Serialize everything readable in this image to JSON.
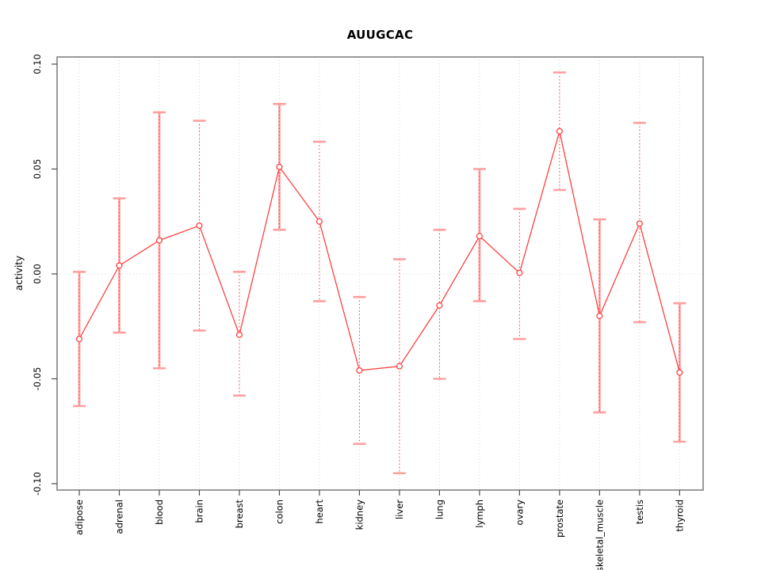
{
  "window": {
    "background": "#ffffff"
  },
  "chart_data": {
    "type": "line",
    "title": "AUUGCAC",
    "xlabel": "",
    "ylabel": "activity",
    "ylim": [
      -0.103,
      0.103
    ],
    "grid": {
      "vertical_dotted_per_category": true,
      "horizontal_zero_dotted": true
    },
    "legend_position": "none",
    "y_ticks": [
      {
        "value": 0.1,
        "label": "0.10"
      },
      {
        "value": 0.05,
        "label": "0.05"
      },
      {
        "value": 0.0,
        "label": "0.00"
      },
      {
        "value": -0.05,
        "label": "-0.05"
      },
      {
        "value": -0.1,
        "label": "-0.10"
      }
    ],
    "categories": [
      "adipose",
      "adrenal",
      "blood",
      "brain",
      "breast",
      "colon",
      "heart",
      "kidney",
      "liver",
      "lung",
      "lymph",
      "ovary",
      "prostate",
      "skeletal_muscle",
      "testis",
      "thyroid"
    ],
    "series": [
      {
        "name": "activity",
        "marker": "open-circle",
        "values": [
          -0.031,
          0.004,
          0.016,
          0.023,
          -0.029,
          0.051,
          0.025,
          -0.046,
          -0.044,
          -0.015,
          0.018,
          0.0005,
          0.068,
          -0.02,
          0.024,
          -0.047
        ],
        "error_lower": [
          -0.063,
          -0.028,
          -0.045,
          -0.027,
          -0.058,
          0.021,
          -0.013,
          -0.081,
          -0.095,
          -0.05,
          -0.013,
          -0.031,
          0.04,
          -0.066,
          -0.023,
          -0.08
        ],
        "error_upper": [
          0.001,
          0.036,
          0.077,
          0.073,
          0.001,
          0.081,
          0.063,
          -0.011,
          0.007,
          0.021,
          0.05,
          0.031,
          0.096,
          0.026,
          0.072,
          -0.014
        ],
        "error_bar_style": [
          "solid",
          "solid",
          "solid",
          "dotted",
          "dotted",
          "solid",
          "dotted",
          "dotted",
          "dotted",
          "dotted",
          "solid",
          "dotted",
          "dotted",
          "solid",
          "dotted",
          "solid"
        ]
      }
    ]
  },
  "colors": {
    "series_red": "#ff4040",
    "error_bar_pink": "#ff9f9f",
    "grid_gray": "#d6d6d6",
    "zero_line_gray": "#dadada",
    "box_gray": "#828282",
    "tick_gray": "#4d4d4d",
    "text_black": "#000000"
  }
}
